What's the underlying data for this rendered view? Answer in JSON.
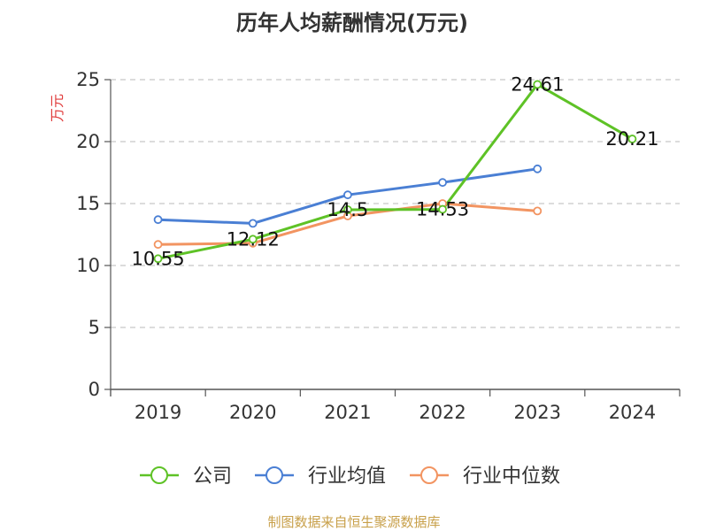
{
  "chart_data": {
    "type": "line",
    "title": "历年人均薪酬情况(万元)",
    "ylabel": "万元",
    "categories": [
      "2019",
      "2020",
      "2021",
      "2022",
      "2023",
      "2024"
    ],
    "ylim": [
      0,
      25
    ],
    "yticks": [
      0,
      5,
      10,
      15,
      20,
      25
    ],
    "grid": true,
    "legend_position": "bottom",
    "series": [
      {
        "name": "公司",
        "color": "#5ec226",
        "values": [
          10.55,
          12.12,
          14.5,
          14.53,
          24.61,
          20.21
        ],
        "labels": [
          "10.55",
          "12.12",
          "14.5",
          "14.53",
          "24.61",
          "20.21"
        ]
      },
      {
        "name": "行业均值",
        "color": "#4a7fd4",
        "values": [
          13.7,
          13.4,
          15.7,
          16.7,
          17.8,
          null
        ]
      },
      {
        "name": "行业中位数",
        "color": "#f29461",
        "values": [
          11.7,
          11.8,
          14.0,
          15.0,
          14.4,
          null
        ]
      }
    ],
    "ylabel_color": "#e03c3c"
  },
  "source": {
    "text": "制图数据来自恒生聚源数据库",
    "color": "#c8a04a"
  }
}
